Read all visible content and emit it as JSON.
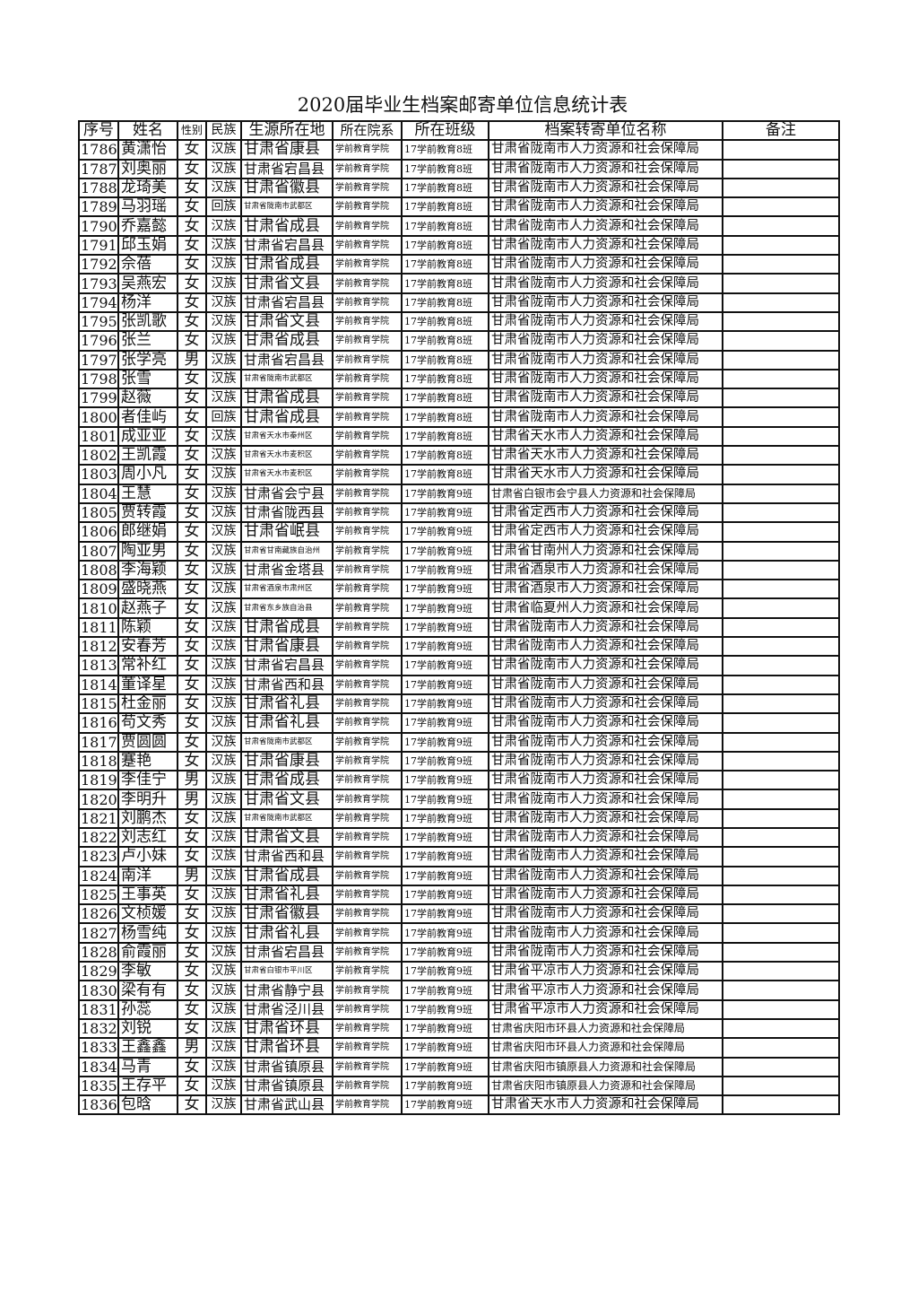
{
  "title": "2020届毕业生档案邮寄单位信息统计表",
  "columns": [
    "序号",
    "姓名",
    "性别",
    "民族",
    "生源所在地",
    "所在院系",
    "所在班级",
    "档案转寄单位名称",
    "备注"
  ],
  "rows": [
    [
      "1786",
      "黄潇怡",
      "女",
      "汉族",
      "甘肃省康县",
      "学前教育学院",
      "17学前教育8班",
      "甘肃省陇南市人力资源和社会保障局",
      ""
    ],
    [
      "1787",
      "刘奥丽",
      "女",
      "汉族",
      "甘肃省宕昌县",
      "学前教育学院",
      "17学前教育8班",
      "甘肃省陇南市人力资源和社会保障局",
      ""
    ],
    [
      "1788",
      "龙琦美",
      "女",
      "汉族",
      "甘肃省徽县",
      "学前教育学院",
      "17学前教育8班",
      "甘肃省陇南市人力资源和社会保障局",
      ""
    ],
    [
      "1789",
      "马羽瑶",
      "女",
      "回族",
      "甘肃省陇南市武都区",
      "学前教育学院",
      "17学前教育8班",
      "甘肃省陇南市人力资源和社会保障局",
      ""
    ],
    [
      "1790",
      "乔嘉懿",
      "女",
      "汉族",
      "甘肃省成县",
      "学前教育学院",
      "17学前教育8班",
      "甘肃省陇南市人力资源和社会保障局",
      ""
    ],
    [
      "1791",
      "邱玉娟",
      "女",
      "汉族",
      "甘肃省宕昌县",
      "学前教育学院",
      "17学前教育8班",
      "甘肃省陇南市人力资源和社会保障局",
      ""
    ],
    [
      "1792",
      "佘蓓",
      "女",
      "汉族",
      "甘肃省成县",
      "学前教育学院",
      "17学前教育8班",
      "甘肃省陇南市人力资源和社会保障局",
      ""
    ],
    [
      "1793",
      "吴燕宏",
      "女",
      "汉族",
      "甘肃省文县",
      "学前教育学院",
      "17学前教育8班",
      "甘肃省陇南市人力资源和社会保障局",
      ""
    ],
    [
      "1794",
      "杨洋",
      "女",
      "汉族",
      "甘肃省宕昌县",
      "学前教育学院",
      "17学前教育8班",
      "甘肃省陇南市人力资源和社会保障局",
      ""
    ],
    [
      "1795",
      "张凯歌",
      "女",
      "汉族",
      "甘肃省文县",
      "学前教育学院",
      "17学前教育8班",
      "甘肃省陇南市人力资源和社会保障局",
      ""
    ],
    [
      "1796",
      "张兰",
      "女",
      "汉族",
      "甘肃省成县",
      "学前教育学院",
      "17学前教育8班",
      "甘肃省陇南市人力资源和社会保障局",
      ""
    ],
    [
      "1797",
      "张学亮",
      "男",
      "汉族",
      "甘肃省宕昌县",
      "学前教育学院",
      "17学前教育8班",
      "甘肃省陇南市人力资源和社会保障局",
      ""
    ],
    [
      "1798",
      "张雪",
      "女",
      "汉族",
      "甘肃省陇南市武都区",
      "学前教育学院",
      "17学前教育8班",
      "甘肃省陇南市人力资源和社会保障局",
      ""
    ],
    [
      "1799",
      "赵薇",
      "女",
      "汉族",
      "甘肃省成县",
      "学前教育学院",
      "17学前教育8班",
      "甘肃省陇南市人力资源和社会保障局",
      ""
    ],
    [
      "1800",
      "者佳屿",
      "女",
      "回族",
      "甘肃省成县",
      "学前教育学院",
      "17学前教育8班",
      "甘肃省陇南市人力资源和社会保障局",
      ""
    ],
    [
      "1801",
      "成亚亚",
      "女",
      "汉族",
      "甘肃省天水市秦州区",
      "学前教育学院",
      "17学前教育8班",
      "甘肃省天水市人力资源和社会保障局",
      ""
    ],
    [
      "1802",
      "王凯霞",
      "女",
      "汉族",
      "甘肃省天水市麦积区",
      "学前教育学院",
      "17学前教育8班",
      "甘肃省天水市人力资源和社会保障局",
      ""
    ],
    [
      "1803",
      "周小凡",
      "女",
      "汉族",
      "甘肃省天水市麦积区",
      "学前教育学院",
      "17学前教育8班",
      "甘肃省天水市人力资源和社会保障局",
      ""
    ],
    [
      "1804",
      "王慧",
      "女",
      "汉族",
      "甘肃省会宁县",
      "学前教育学院",
      "17学前教育9班",
      "甘肃省白银市会宁县人力资源和社会保障局",
      ""
    ],
    [
      "1805",
      "贾转霞",
      "女",
      "汉族",
      "甘肃省陇西县",
      "学前教育学院",
      "17学前教育9班",
      "甘肃省定西市人力资源和社会保障局",
      ""
    ],
    [
      "1806",
      "郎继娟",
      "女",
      "汉族",
      "甘肃省岷县",
      "学前教育学院",
      "17学前教育9班",
      "甘肃省定西市人力资源和社会保障局",
      ""
    ],
    [
      "1807",
      "陶亚男",
      "女",
      "汉族",
      "甘肃省甘南藏族自治州",
      "学前教育学院",
      "17学前教育9班",
      "甘肃省甘南州人力资源和社会保障局",
      ""
    ],
    [
      "1808",
      "李海颖",
      "女",
      "汉族",
      "甘肃省金塔县",
      "学前教育学院",
      "17学前教育9班",
      "甘肃省酒泉市人力资源和社会保障局",
      ""
    ],
    [
      "1809",
      "盛晓燕",
      "女",
      "汉族",
      "甘肃省酒泉市肃州区",
      "学前教育学院",
      "17学前教育9班",
      "甘肃省酒泉市人力资源和社会保障局",
      ""
    ],
    [
      "1810",
      "赵燕子",
      "女",
      "汉族",
      "甘肃省东乡族自治县",
      "学前教育学院",
      "17学前教育9班",
      "甘肃省临夏州人力资源和社会保障局",
      ""
    ],
    [
      "1811",
      "陈颖",
      "女",
      "汉族",
      "甘肃省成县",
      "学前教育学院",
      "17学前教育9班",
      "甘肃省陇南市人力资源和社会保障局",
      ""
    ],
    [
      "1812",
      "安春芳",
      "女",
      "汉族",
      "甘肃省康县",
      "学前教育学院",
      "17学前教育9班",
      "甘肃省陇南市人力资源和社会保障局",
      ""
    ],
    [
      "1813",
      "常补红",
      "女",
      "汉族",
      "甘肃省宕昌县",
      "学前教育学院",
      "17学前教育9班",
      "甘肃省陇南市人力资源和社会保障局",
      ""
    ],
    [
      "1814",
      "董译星",
      "女",
      "汉族",
      "甘肃省西和县",
      "学前教育学院",
      "17学前教育9班",
      "甘肃省陇南市人力资源和社会保障局",
      ""
    ],
    [
      "1815",
      "杜金丽",
      "女",
      "汉族",
      "甘肃省礼县",
      "学前教育学院",
      "17学前教育9班",
      "甘肃省陇南市人力资源和社会保障局",
      ""
    ],
    [
      "1816",
      "苟文秀",
      "女",
      "汉族",
      "甘肃省礼县",
      "学前教育学院",
      "17学前教育9班",
      "甘肃省陇南市人力资源和社会保障局",
      ""
    ],
    [
      "1817",
      "贾圆圆",
      "女",
      "汉族",
      "甘肃省陇南市武都区",
      "学前教育学院",
      "17学前教育9班",
      "甘肃省陇南市人力资源和社会保障局",
      ""
    ],
    [
      "1818",
      "蹇艳",
      "女",
      "汉族",
      "甘肃省康县",
      "学前教育学院",
      "17学前教育9班",
      "甘肃省陇南市人力资源和社会保障局",
      ""
    ],
    [
      "1819",
      "李佳宁",
      "男",
      "汉族",
      "甘肃省成县",
      "学前教育学院",
      "17学前教育9班",
      "甘肃省陇南市人力资源和社会保障局",
      ""
    ],
    [
      "1820",
      "李明升",
      "男",
      "汉族",
      "甘肃省文县",
      "学前教育学院",
      "17学前教育9班",
      "甘肃省陇南市人力资源和社会保障局",
      ""
    ],
    [
      "1821",
      "刘鹏杰",
      "女",
      "汉族",
      "甘肃省陇南市武都区",
      "学前教育学院",
      "17学前教育9班",
      "甘肃省陇南市人力资源和社会保障局",
      ""
    ],
    [
      "1822",
      "刘志红",
      "女",
      "汉族",
      "甘肃省文县",
      "学前教育学院",
      "17学前教育9班",
      "甘肃省陇南市人力资源和社会保障局",
      ""
    ],
    [
      "1823",
      "卢小妹",
      "女",
      "汉族",
      "甘肃省西和县",
      "学前教育学院",
      "17学前教育9班",
      "甘肃省陇南市人力资源和社会保障局",
      ""
    ],
    [
      "1824",
      "南洋",
      "男",
      "汉族",
      "甘肃省成县",
      "学前教育学院",
      "17学前教育9班",
      "甘肃省陇南市人力资源和社会保障局",
      ""
    ],
    [
      "1825",
      "王事英",
      "女",
      "汉族",
      "甘肃省礼县",
      "学前教育学院",
      "17学前教育9班",
      "甘肃省陇南市人力资源和社会保障局",
      ""
    ],
    [
      "1826",
      "文桢媛",
      "女",
      "汉族",
      "甘肃省徽县",
      "学前教育学院",
      "17学前教育9班",
      "甘肃省陇南市人力资源和社会保障局",
      ""
    ],
    [
      "1827",
      "杨雪纯",
      "女",
      "汉族",
      "甘肃省礼县",
      "学前教育学院",
      "17学前教育9班",
      "甘肃省陇南市人力资源和社会保障局",
      ""
    ],
    [
      "1828",
      "俞霞丽",
      "女",
      "汉族",
      "甘肃省宕昌县",
      "学前教育学院",
      "17学前教育9班",
      "甘肃省陇南市人力资源和社会保障局",
      ""
    ],
    [
      "1829",
      "李敏",
      "女",
      "汉族",
      "甘肃省白银市平川区",
      "学前教育学院",
      "17学前教育9班",
      "甘肃省平凉市人力资源和社会保障局",
      ""
    ],
    [
      "1830",
      "梁有有",
      "女",
      "汉族",
      "甘肃省静宁县",
      "学前教育学院",
      "17学前教育9班",
      "甘肃省平凉市人力资源和社会保障局",
      ""
    ],
    [
      "1831",
      "孙蕊",
      "女",
      "汉族",
      "甘肃省泾川县",
      "学前教育学院",
      "17学前教育9班",
      "甘肃省平凉市人力资源和社会保障局",
      ""
    ],
    [
      "1832",
      "刘锐",
      "女",
      "汉族",
      "甘肃省环县",
      "学前教育学院",
      "17学前教育9班",
      "甘肃省庆阳市环县人力资源和社会保障局",
      ""
    ],
    [
      "1833",
      "王鑫鑫",
      "男",
      "汉族",
      "甘肃省环县",
      "学前教育学院",
      "17学前教育9班",
      "甘肃省庆阳市环县人力资源和社会保障局",
      ""
    ],
    [
      "1834",
      "马青",
      "女",
      "汉族",
      "甘肃省镇原县",
      "学前教育学院",
      "17学前教育9班",
      "甘肃省庆阳市镇原县人力资源和社会保障局",
      ""
    ],
    [
      "1835",
      "王存平",
      "女",
      "汉族",
      "甘肃省镇原县",
      "学前教育学院",
      "17学前教育9班",
      "甘肃省庆阳市镇原县人力资源和社会保障局",
      ""
    ],
    [
      "1836",
      "包晗",
      "女",
      "汉族",
      "甘肃省武山县",
      "学前教育学院",
      "17学前教育9班",
      "甘肃省天水市人力资源和社会保障局",
      ""
    ]
  ]
}
